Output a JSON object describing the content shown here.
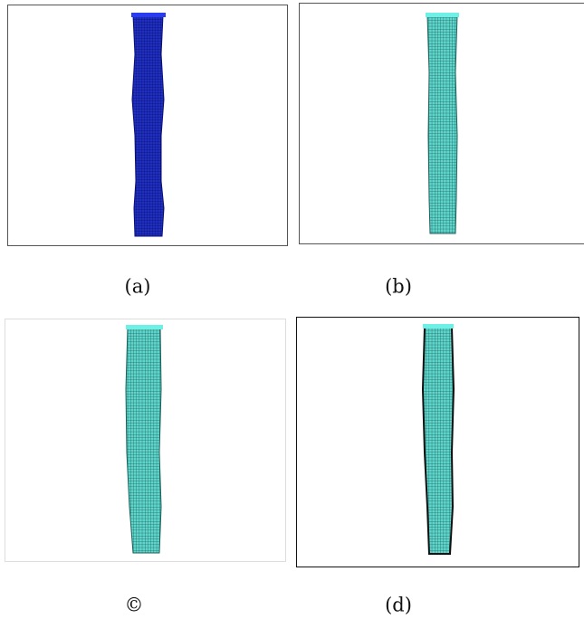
{
  "panels": [
    {
      "caption": "(a)"
    },
    {
      "caption": "(b)"
    },
    {
      "caption": "©"
    },
    {
      "caption": "(d)"
    }
  ]
}
